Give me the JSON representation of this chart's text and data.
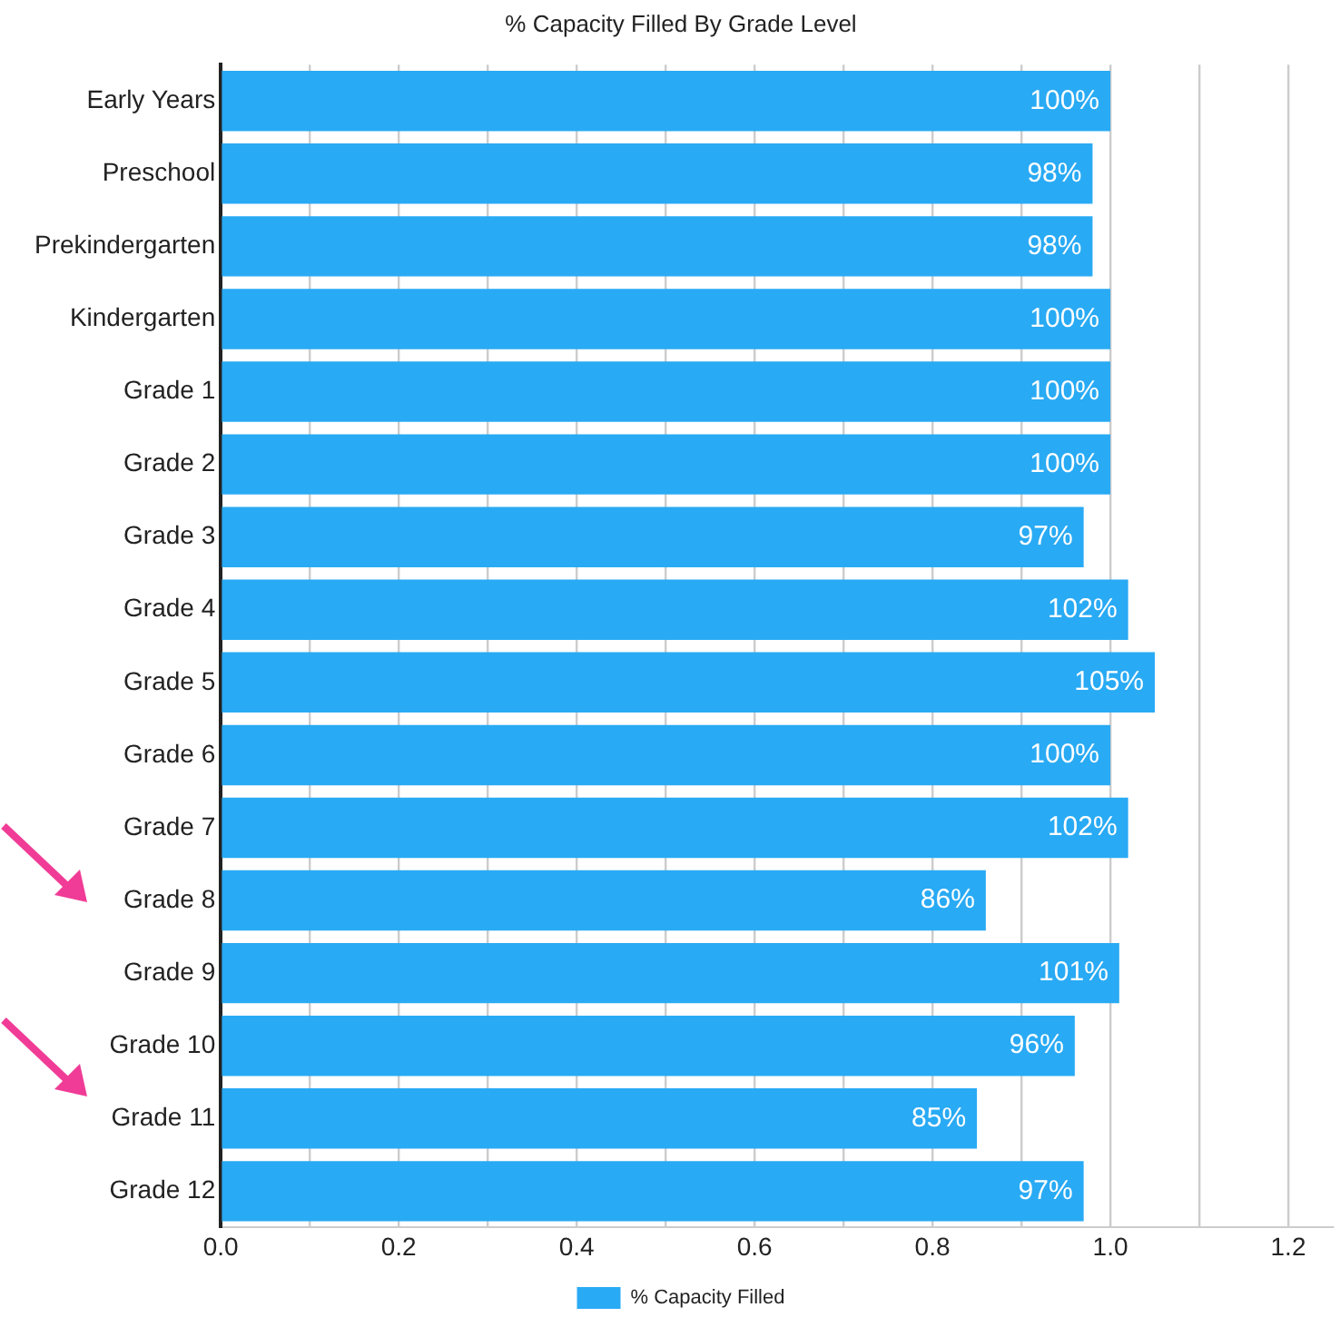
{
  "chart_data": {
    "type": "bar",
    "orientation": "horizontal",
    "title": "% Capacity Filled By Grade Level",
    "categories": [
      "Early Years",
      "Preschool",
      "Prekindergarten",
      "Kindergarten",
      "Grade 1",
      "Grade 2",
      "Grade 3",
      "Grade 4",
      "Grade 5",
      "Grade 6",
      "Grade 7",
      "Grade 8",
      "Grade 9",
      "Grade 10",
      "Grade 11",
      "Grade 12"
    ],
    "series": [
      {
        "name": "% Capacity Filled",
        "color": "#29aaf4",
        "values": [
          1.0,
          0.98,
          0.98,
          1.0,
          1.0,
          1.0,
          0.97,
          1.02,
          1.05,
          1.0,
          1.02,
          0.86,
          1.01,
          0.96,
          0.85,
          0.97
        ],
        "value_labels": [
          "100%",
          "98%",
          "98%",
          "100%",
          "100%",
          "100%",
          "97%",
          "102%",
          "105%",
          "100%",
          "102%",
          "86%",
          "101%",
          "96%",
          "85%",
          "97%"
        ]
      }
    ],
    "xlim": [
      0,
      1.25
    ],
    "xticks": [
      {
        "value": 0,
        "label": "0.0"
      },
      {
        "value": 0.1,
        "label": null
      },
      0.2,
      {
        "value": 0.3,
        "label": null
      },
      0.4,
      {
        "value": 0.5,
        "label": null
      },
      0.6,
      {
        "value": 0.7,
        "label": null
      },
      0.8,
      {
        "value": 0.9,
        "label": null
      },
      {
        "value": 1,
        "label": "1.0"
      },
      {
        "value": 1.1,
        "label": null
      },
      1.2
    ],
    "grid": "x",
    "legend": "bottom"
  }
}
